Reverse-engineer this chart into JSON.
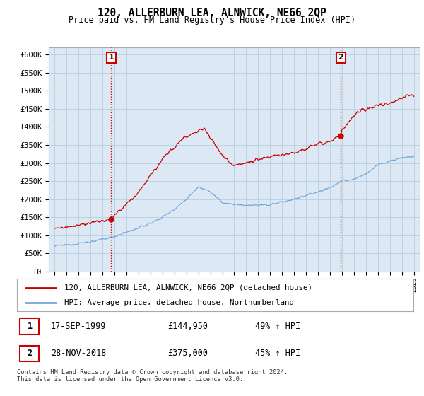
{
  "title": "120, ALLERBURN LEA, ALNWICK, NE66 2QP",
  "subtitle": "Price paid vs. HM Land Registry's House Price Index (HPI)",
  "ylim": [
    0,
    620000
  ],
  "yticks": [
    0,
    50000,
    100000,
    150000,
    200000,
    250000,
    300000,
    350000,
    400000,
    450000,
    500000,
    550000,
    600000
  ],
  "ytick_labels": [
    "£0",
    "£50K",
    "£100K",
    "£150K",
    "£200K",
    "£250K",
    "£300K",
    "£350K",
    "£400K",
    "£450K",
    "£500K",
    "£550K",
    "£600K"
  ],
  "hpi_color": "#6fa8dc",
  "price_color": "#cc0000",
  "vline_color": "#cc0000",
  "purchase1_date_x": 1999.72,
  "purchase1_price": 144950,
  "purchase1_label": "1",
  "purchase1_date_str": "17-SEP-1999",
  "purchase1_price_str": "£144,950",
  "purchase1_note": "49% ↑ HPI",
  "purchase2_date_x": 2018.91,
  "purchase2_price": 375000,
  "purchase2_label": "2",
  "purchase2_date_str": "28-NOV-2018",
  "purchase2_price_str": "£375,000",
  "purchase2_note": "45% ↑ HPI",
  "legend_line1": "120, ALLERBURN LEA, ALNWICK, NE66 2QP (detached house)",
  "legend_line2": "HPI: Average price, detached house, Northumberland",
  "footnote": "Contains HM Land Registry data © Crown copyright and database right 2024.\nThis data is licensed under the Open Government Licence v3.0.",
  "background_color": "#ffffff",
  "plot_bg_color": "#dce9f5",
  "grid_color": "#b8cfe0",
  "xlim_left": 1994.5,
  "xlim_right": 2025.5,
  "hpi_knots_x": [
    1995,
    1996,
    1997,
    1998,
    1999,
    2000,
    2001,
    2002,
    2003,
    2004,
    2005,
    2006,
    2007,
    2008,
    2009,
    2010,
    2011,
    2012,
    2013,
    2014,
    2015,
    2016,
    2017,
    2018,
    2019,
    2020,
    2021,
    2022,
    2023,
    2024,
    2025
  ],
  "hpi_knots_y": [
    70000,
    73000,
    77000,
    82000,
    88000,
    97000,
    108000,
    120000,
    133000,
    150000,
    172000,
    200000,
    235000,
    220000,
    190000,
    185000,
    183000,
    182000,
    185000,
    192000,
    200000,
    210000,
    220000,
    232000,
    250000,
    255000,
    270000,
    295000,
    305000,
    315000,
    318000
  ],
  "price_knots_x": [
    1995,
    1996,
    1997,
    1998,
    1999,
    1999.72,
    2000,
    2001,
    2002,
    2003,
    2004,
    2005,
    2006,
    2007,
    2007.5,
    2008,
    2009,
    2010,
    2011,
    2012,
    2013,
    2014,
    2015,
    2016,
    2017,
    2018,
    2018.91,
    2019,
    2020,
    2021,
    2022,
    2023,
    2024,
    2024.5,
    2025
  ],
  "price_knots_y": [
    118000,
    122000,
    128000,
    133000,
    140000,
    144950,
    155000,
    185000,
    220000,
    265000,
    310000,
    345000,
    375000,
    390000,
    395000,
    370000,
    320000,
    295000,
    300000,
    310000,
    315000,
    325000,
    330000,
    340000,
    355000,
    360000,
    375000,
    390000,
    430000,
    450000,
    460000,
    465000,
    480000,
    490000,
    488000
  ]
}
